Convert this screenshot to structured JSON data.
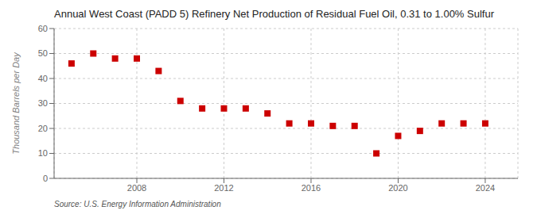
{
  "chart_data": {
    "type": "scatter",
    "title": "Annual West Coast (PADD 5) Refinery Net Production of Residual Fuel Oil, 0.31 to 1.00% Sulfur",
    "ylabel": "Thousand Barrels per Day",
    "annotations": [
      "Source: U.S. Energy Information Administration"
    ],
    "x": [
      2005,
      2006,
      2007,
      2008,
      2009,
      2010,
      2011,
      2012,
      2013,
      2014,
      2015,
      2016,
      2017,
      2018,
      2019,
      2020,
      2021,
      2022,
      2023,
      2024
    ],
    "values": [
      46,
      50,
      48,
      48,
      43,
      31,
      28,
      28,
      28,
      26,
      22,
      22,
      21,
      21,
      10,
      17,
      19,
      22,
      22,
      22
    ],
    "color": "#cc0000",
    "marker": "square",
    "xlim": [
      2004.2,
      2025.5
    ],
    "xticks": [
      2008,
      2012,
      2016,
      2020,
      2024
    ],
    "ylim": [
      0,
      60
    ],
    "yticks": [
      0,
      10,
      20,
      30,
      40,
      50,
      60
    ],
    "grid": true
  }
}
